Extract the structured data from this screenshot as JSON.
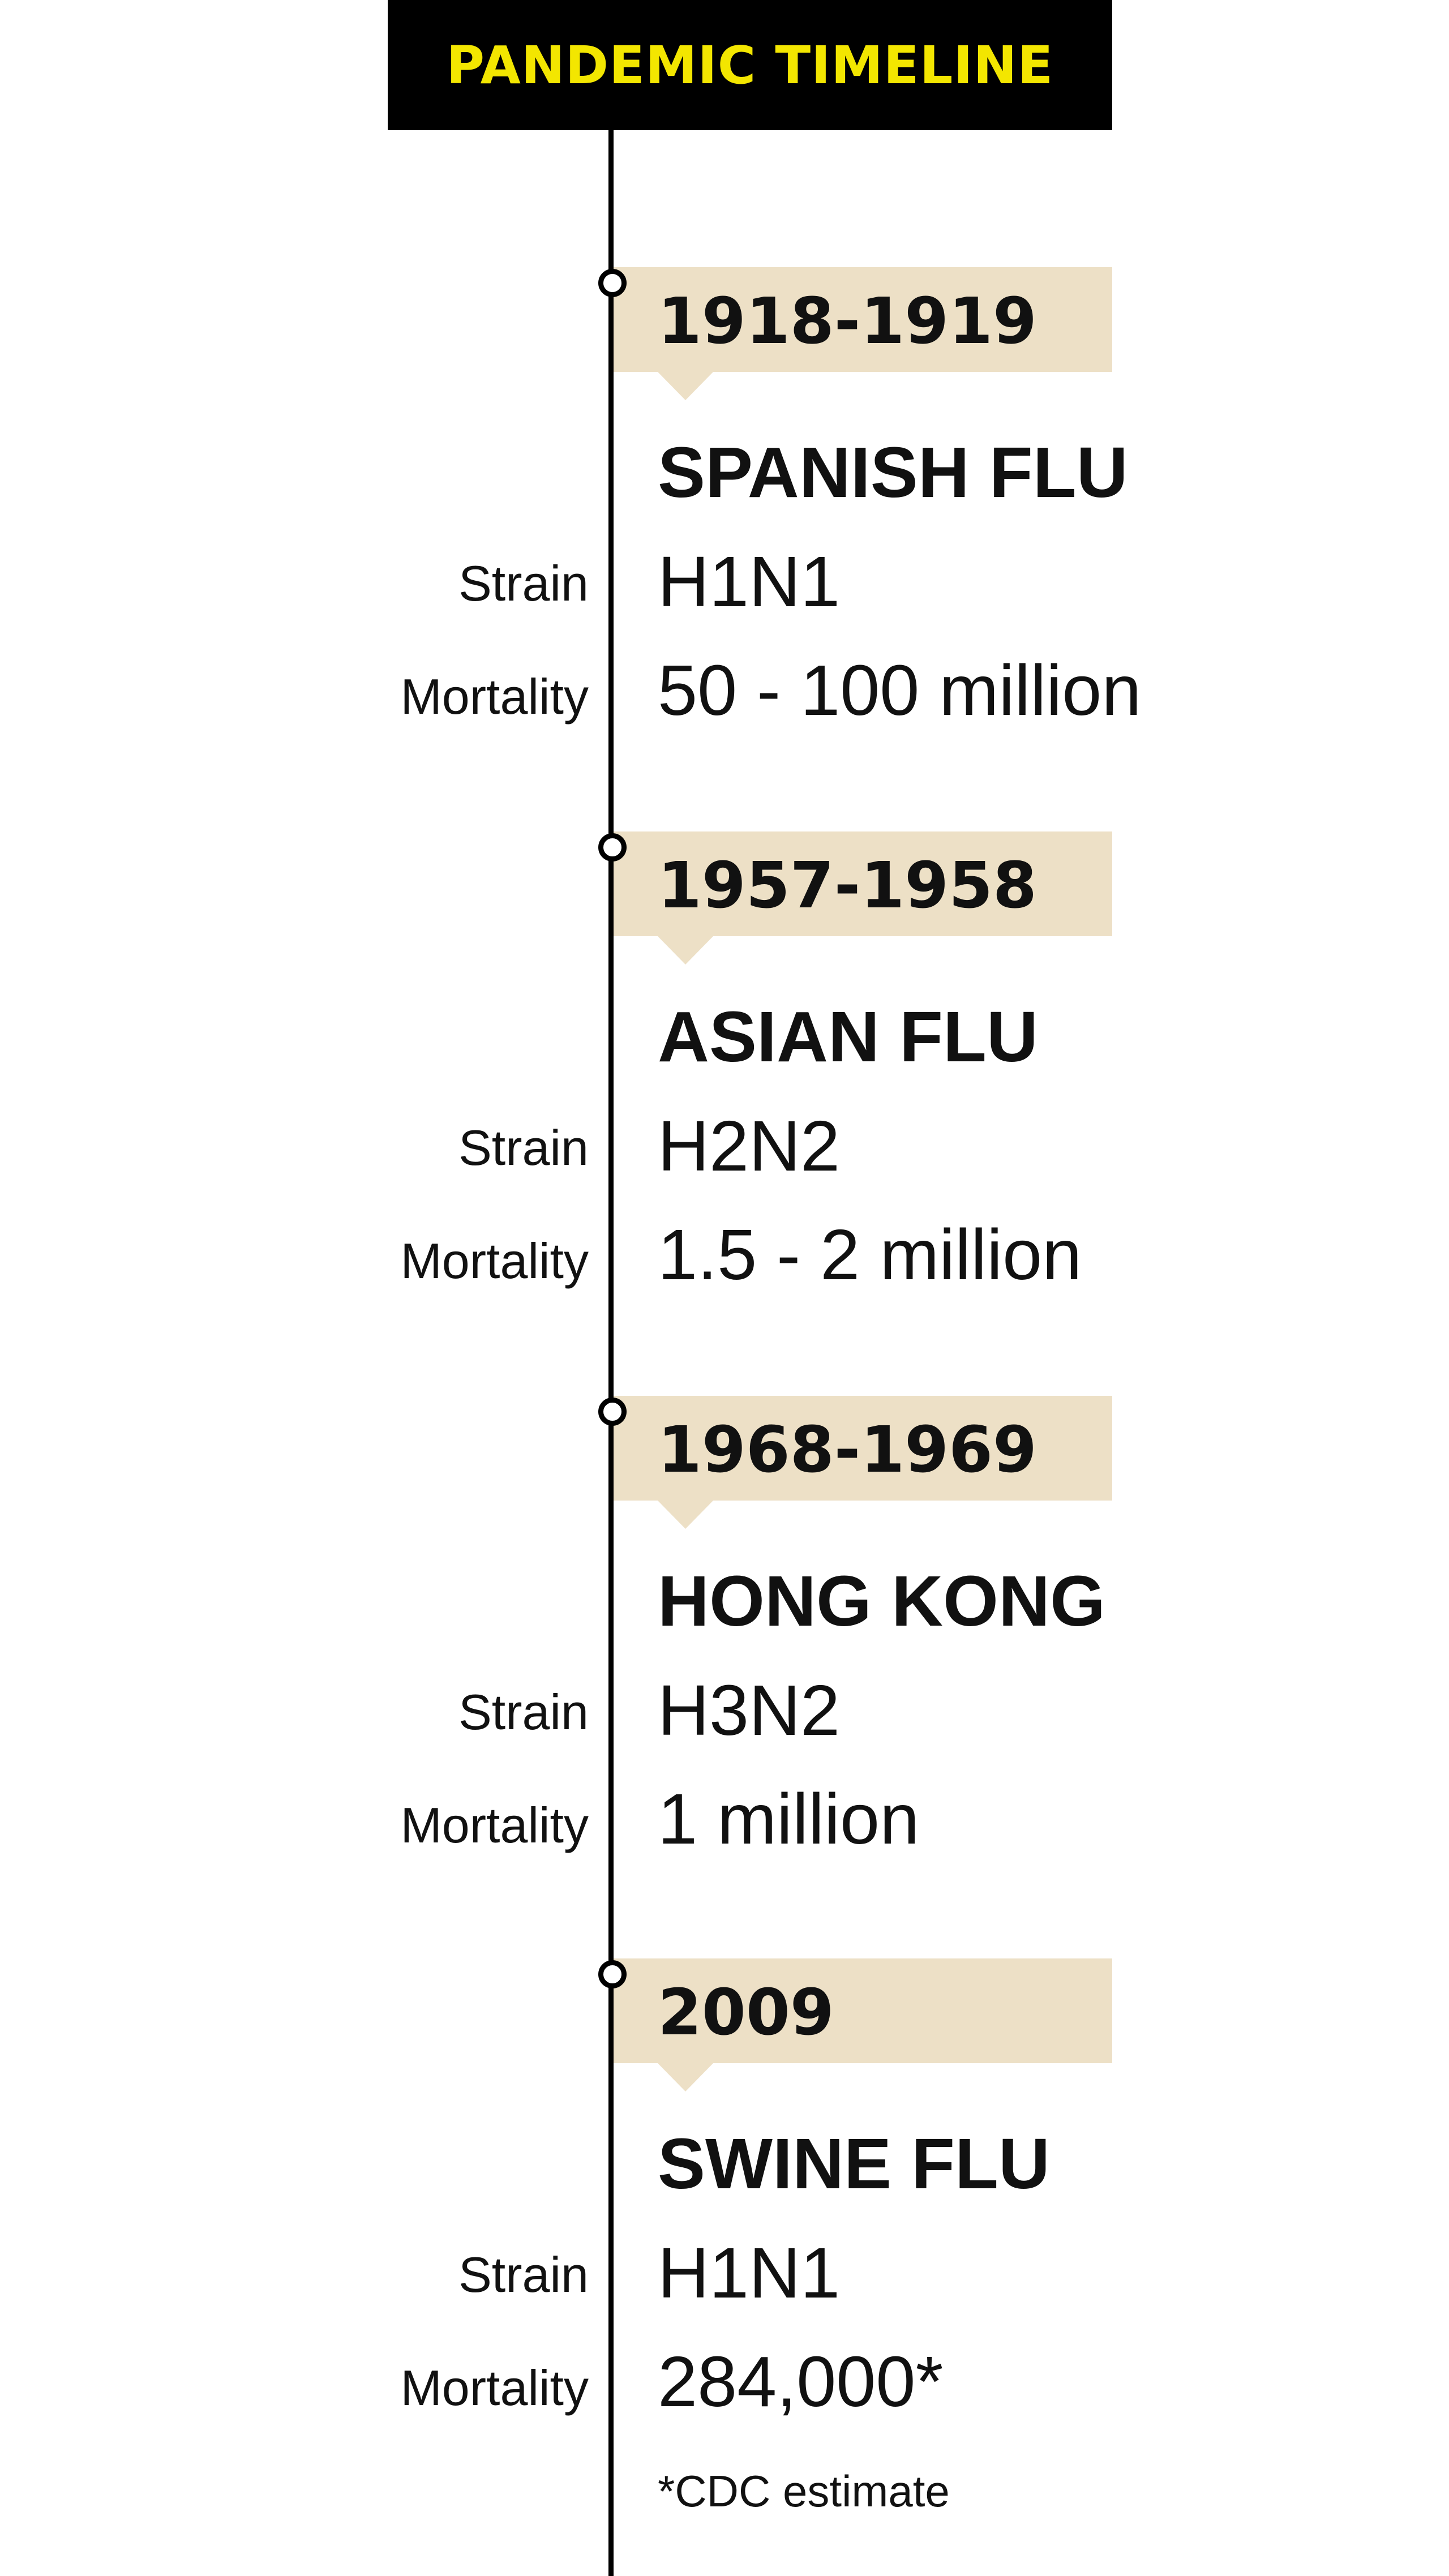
{
  "header": {
    "title": "PANDEMIC TIMELINE"
  },
  "colors": {
    "header_bg": "#000000",
    "header_text": "#f3e600",
    "date_box": "#ede0c6",
    "line": "#000000"
  },
  "labels": {
    "strain": "Strain",
    "mortality": "Mortality"
  },
  "events": [
    {
      "date": "1918-1919",
      "name": "SPANISH FLU",
      "strain": "H1N1",
      "mortality": "50 - 100 million"
    },
    {
      "date": "1957-1958",
      "name": "ASIAN FLU",
      "strain": "H2N2",
      "mortality": "1.5 - 2 million"
    },
    {
      "date": "1968-1969",
      "name": "HONG KONG",
      "strain": "H3N2",
      "mortality": "1 million"
    },
    {
      "date": "2009",
      "name": "SWINE FLU",
      "strain": "H1N1",
      "mortality": "284,000*"
    }
  ],
  "footnote": "*CDC estimate"
}
